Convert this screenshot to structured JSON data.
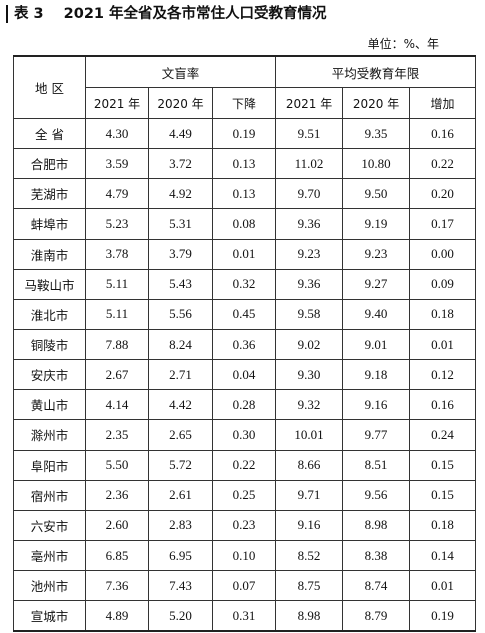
{
  "caption": {
    "label": "表 3",
    "title": "2021 年全省及各市常住人口受教育情况"
  },
  "unit": "单位：%、年",
  "header": {
    "region": "地 区",
    "group1": "文盲率",
    "group2": "平均受教育年限",
    "sub": [
      "2021 年",
      "2020 年",
      "下降",
      "2021 年",
      "2020 年",
      "增加"
    ]
  },
  "rows": [
    {
      "region": "全 省",
      "ill2021": "4.30",
      "ill2020": "4.49",
      "drop": "0.19",
      "yrs2021": "9.51",
      "yrs2020": "9.35",
      "inc": "0.16"
    },
    {
      "region": "合肥市",
      "ill2021": "3.59",
      "ill2020": "3.72",
      "drop": "0.13",
      "yrs2021": "11.02",
      "yrs2020": "10.80",
      "inc": "0.22"
    },
    {
      "region": "芜湖市",
      "ill2021": "4.79",
      "ill2020": "4.92",
      "drop": "0.13",
      "yrs2021": "9.70",
      "yrs2020": "9.50",
      "inc": "0.20"
    },
    {
      "region": "蚌埠市",
      "ill2021": "5.23",
      "ill2020": "5.31",
      "drop": "0.08",
      "yrs2021": "9.36",
      "yrs2020": "9.19",
      "inc": "0.17"
    },
    {
      "region": "淮南市",
      "ill2021": "3.78",
      "ill2020": "3.79",
      "drop": "0.01",
      "yrs2021": "9.23",
      "yrs2020": "9.23",
      "inc": "0.00"
    },
    {
      "region": "马鞍山市",
      "ill2021": "5.11",
      "ill2020": "5.43",
      "drop": "0.32",
      "yrs2021": "9.36",
      "yrs2020": "9.27",
      "inc": "0.09"
    },
    {
      "region": "淮北市",
      "ill2021": "5.11",
      "ill2020": "5.56",
      "drop": "0.45",
      "yrs2021": "9.58",
      "yrs2020": "9.40",
      "inc": "0.18"
    },
    {
      "region": "铜陵市",
      "ill2021": "7.88",
      "ill2020": "8.24",
      "drop": "0.36",
      "yrs2021": "9.02",
      "yrs2020": "9.01",
      "inc": "0.01"
    },
    {
      "region": "安庆市",
      "ill2021": "2.67",
      "ill2020": "2.71",
      "drop": "0.04",
      "yrs2021": "9.30",
      "yrs2020": "9.18",
      "inc": "0.12"
    },
    {
      "region": "黄山市",
      "ill2021": "4.14",
      "ill2020": "4.42",
      "drop": "0.28",
      "yrs2021": "9.32",
      "yrs2020": "9.16",
      "inc": "0.16"
    },
    {
      "region": "滁州市",
      "ill2021": "2.35",
      "ill2020": "2.65",
      "drop": "0.30",
      "yrs2021": "10.01",
      "yrs2020": "9.77",
      "inc": "0.24"
    },
    {
      "region": "阜阳市",
      "ill2021": "5.50",
      "ill2020": "5.72",
      "drop": "0.22",
      "yrs2021": "8.66",
      "yrs2020": "8.51",
      "inc": "0.15"
    },
    {
      "region": "宿州市",
      "ill2021": "2.36",
      "ill2020": "2.61",
      "drop": "0.25",
      "yrs2021": "9.71",
      "yrs2020": "9.56",
      "inc": "0.15"
    },
    {
      "region": "六安市",
      "ill2021": "2.60",
      "ill2020": "2.83",
      "drop": "0.23",
      "yrs2021": "9.16",
      "yrs2020": "8.98",
      "inc": "0.18"
    },
    {
      "region": "亳州市",
      "ill2021": "6.85",
      "ill2020": "6.95",
      "drop": "0.10",
      "yrs2021": "8.52",
      "yrs2020": "8.38",
      "inc": "0.14"
    },
    {
      "region": "池州市",
      "ill2021": "7.36",
      "ill2020": "7.43",
      "drop": "0.07",
      "yrs2021": "8.75",
      "yrs2020": "8.74",
      "inc": "0.01"
    },
    {
      "region": "宣城市",
      "ill2021": "4.89",
      "ill2020": "5.20",
      "drop": "0.31",
      "yrs2021": "8.98",
      "yrs2020": "8.79",
      "inc": "0.19"
    }
  ]
}
